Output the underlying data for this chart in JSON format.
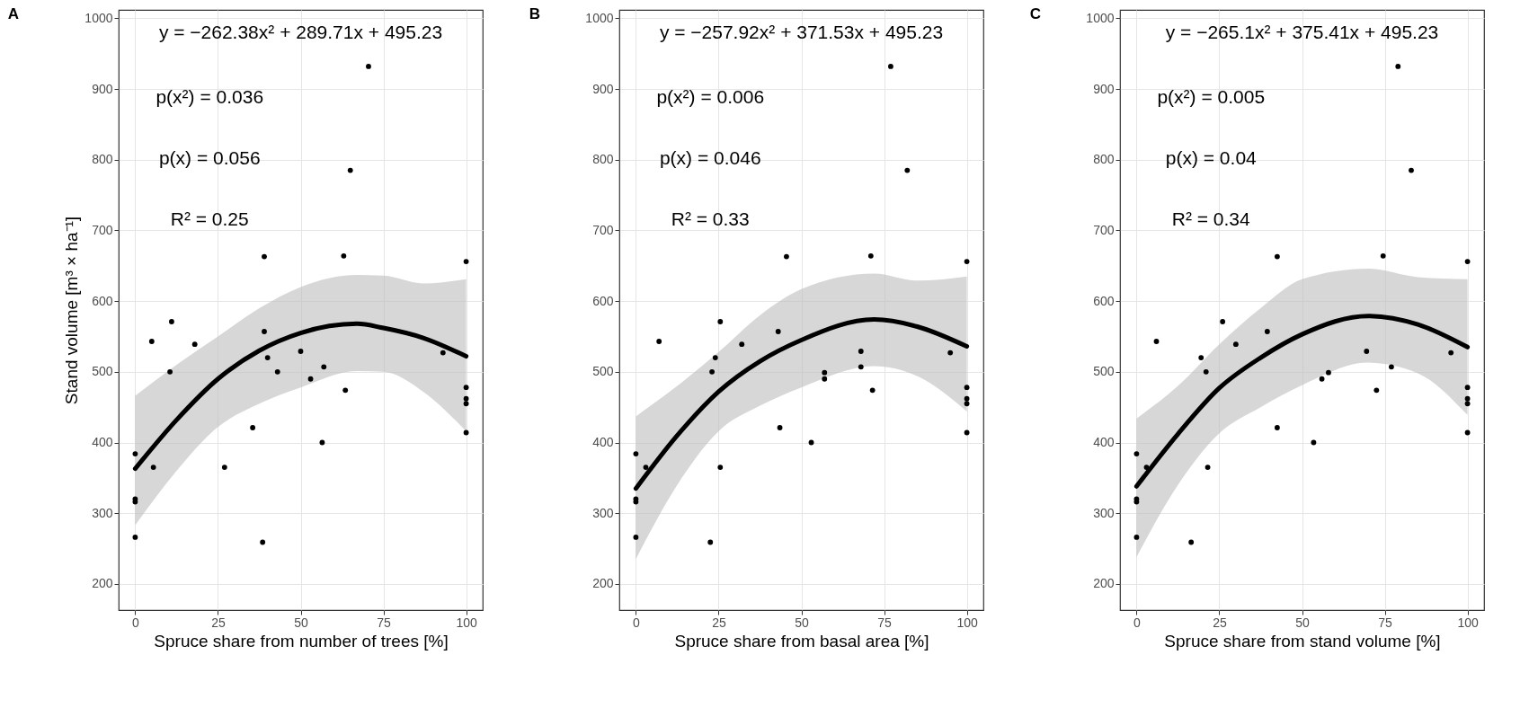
{
  "chart_data": [
    {
      "type": "scatter",
      "title": "A",
      "xlabel": "Spruce share from number of trees [%]",
      "ylabel": "Stand volume [m³ × ha⁻¹]",
      "xlim": [
        -5,
        105
      ],
      "ylim": [
        163,
        1012
      ],
      "xticks": [
        0,
        25,
        50,
        75,
        100
      ],
      "yticks": [
        200,
        300,
        400,
        500,
        600,
        700,
        800,
        900,
        1000
      ],
      "grid": true,
      "marker": "circle",
      "annotations": [
        "y = −262.38x² + 289.71x + 495.23",
        "p(x²) = 0.036",
        "p(x) = 0.056",
        "R² = 0.25"
      ],
      "series": [
        {
          "type": "line",
          "marker": "none",
          "color": "#000000",
          "x": [
            0,
            12.5,
            25,
            37.5,
            50,
            67,
            75,
            87,
            100
          ],
          "values": [
            363,
            432,
            490,
            530,
            555,
            568,
            562,
            548,
            522
          ],
          "lower": [
            283,
            360,
            422,
            455,
            478,
            501,
            500,
            472,
            416
          ],
          "upper": [
            466,
            510,
            550,
            590,
            620,
            637,
            636,
            625,
            631
          ]
        },
        {
          "color": "#000000",
          "x": [
            0,
            0,
            0,
            0,
            5,
            5.5,
            10.5,
            11,
            18,
            27,
            35.5,
            38.5,
            39,
            39,
            40,
            43,
            50,
            53,
            56.5,
            57,
            63,
            63.5,
            65,
            70.5,
            93,
            100,
            100,
            100,
            100,
            100
          ],
          "values": [
            384,
            320,
            316,
            266,
            543,
            365,
            500,
            571,
            539,
            365,
            421,
            259,
            663,
            557,
            520,
            500,
            529,
            490,
            400,
            507,
            664,
            474,
            785,
            932,
            527,
            656,
            478,
            462,
            455,
            414
          ]
        }
      ]
    },
    {
      "type": "scatter",
      "title": "B",
      "xlabel": "Spruce share from basal area [%]",
      "xlim": [
        -5,
        105
      ],
      "ylim": [
        163,
        1012
      ],
      "xticks": [
        0,
        25,
        50,
        75,
        100
      ],
      "yticks": [
        200,
        300,
        400,
        500,
        600,
        700,
        800,
        900,
        1000
      ],
      "grid": true,
      "marker": "circle",
      "annotations": [
        "y = −257.92x² + 371.53x + 495.23",
        "p(x²) = 0.006",
        "p(x) = 0.046",
        "R² = 0.33"
      ],
      "series": [
        {
          "type": "line",
          "marker": "none",
          "color": "#000000",
          "x": [
            0,
            12.5,
            25,
            37.5,
            50,
            72,
            85,
            100
          ],
          "values": [
            335,
            410,
            472,
            515,
            545,
            574,
            564,
            536
          ],
          "lower": [
            235,
            340,
            416,
            452,
            478,
            508,
            494,
            444
          ],
          "upper": [
            437,
            480,
            528,
            580,
            617,
            639,
            629,
            635
          ]
        },
        {
          "color": "#000000",
          "x": [
            0,
            0,
            0,
            0,
            3,
            7,
            22.5,
            23,
            24,
            25.5,
            25.5,
            32,
            43,
            43.5,
            45.5,
            53,
            57,
            57,
            68,
            68,
            71,
            71.5,
            77,
            82,
            95,
            100,
            100,
            100,
            100,
            100
          ],
          "values": [
            384,
            320,
            316,
            266,
            365,
            543,
            259,
            500,
            520,
            571,
            365,
            539,
            557,
            421,
            663,
            400,
            499,
            490,
            529,
            507,
            664,
            474,
            932,
            785,
            527,
            656,
            478,
            462,
            455,
            414
          ]
        }
      ]
    },
    {
      "type": "scatter",
      "title": "C",
      "xlabel": "Spruce share from stand volume [%]",
      "xlim": [
        -5,
        105
      ],
      "ylim": [
        163,
        1012
      ],
      "xticks": [
        0,
        25,
        50,
        75,
        100
      ],
      "yticks": [
        200,
        300,
        400,
        500,
        600,
        700,
        800,
        900,
        1000
      ],
      "grid": true,
      "marker": "circle",
      "annotations": [
        "y = −265.1x² + 375.41x + 495.23",
        "p(x²) = 0.005",
        "p(x) = 0.04",
        "R² = 0.34"
      ],
      "series": [
        {
          "type": "line",
          "marker": "none",
          "color": "#000000",
          "x": [
            0,
            12.5,
            25,
            37.5,
            50,
            70,
            85,
            100
          ],
          "values": [
            338,
            412,
            477,
            520,
            553,
            579,
            567,
            535
          ],
          "lower": [
            238,
            340,
            413,
            450,
            481,
            513,
            498,
            439
          ],
          "upper": [
            434,
            480,
            539,
            590,
            631,
            646,
            634,
            631
          ]
        },
        {
          "color": "#000000",
          "x": [
            0,
            0,
            0,
            0,
            3,
            6,
            16.5,
            19.5,
            21,
            21.5,
            26,
            30,
            39.5,
            42.5,
            42.5,
            53.5,
            56,
            58,
            69.5,
            72.5,
            74.5,
            77,
            79,
            83,
            95,
            100,
            100,
            100,
            100,
            100
          ],
          "values": [
            384,
            320,
            316,
            266,
            365,
            543,
            259,
            520,
            500,
            365,
            571,
            539,
            557,
            421,
            663,
            400,
            490,
            499,
            529,
            474,
            664,
            507,
            932,
            785,
            527,
            656,
            478,
            462,
            455,
            414
          ]
        }
      ]
    }
  ]
}
